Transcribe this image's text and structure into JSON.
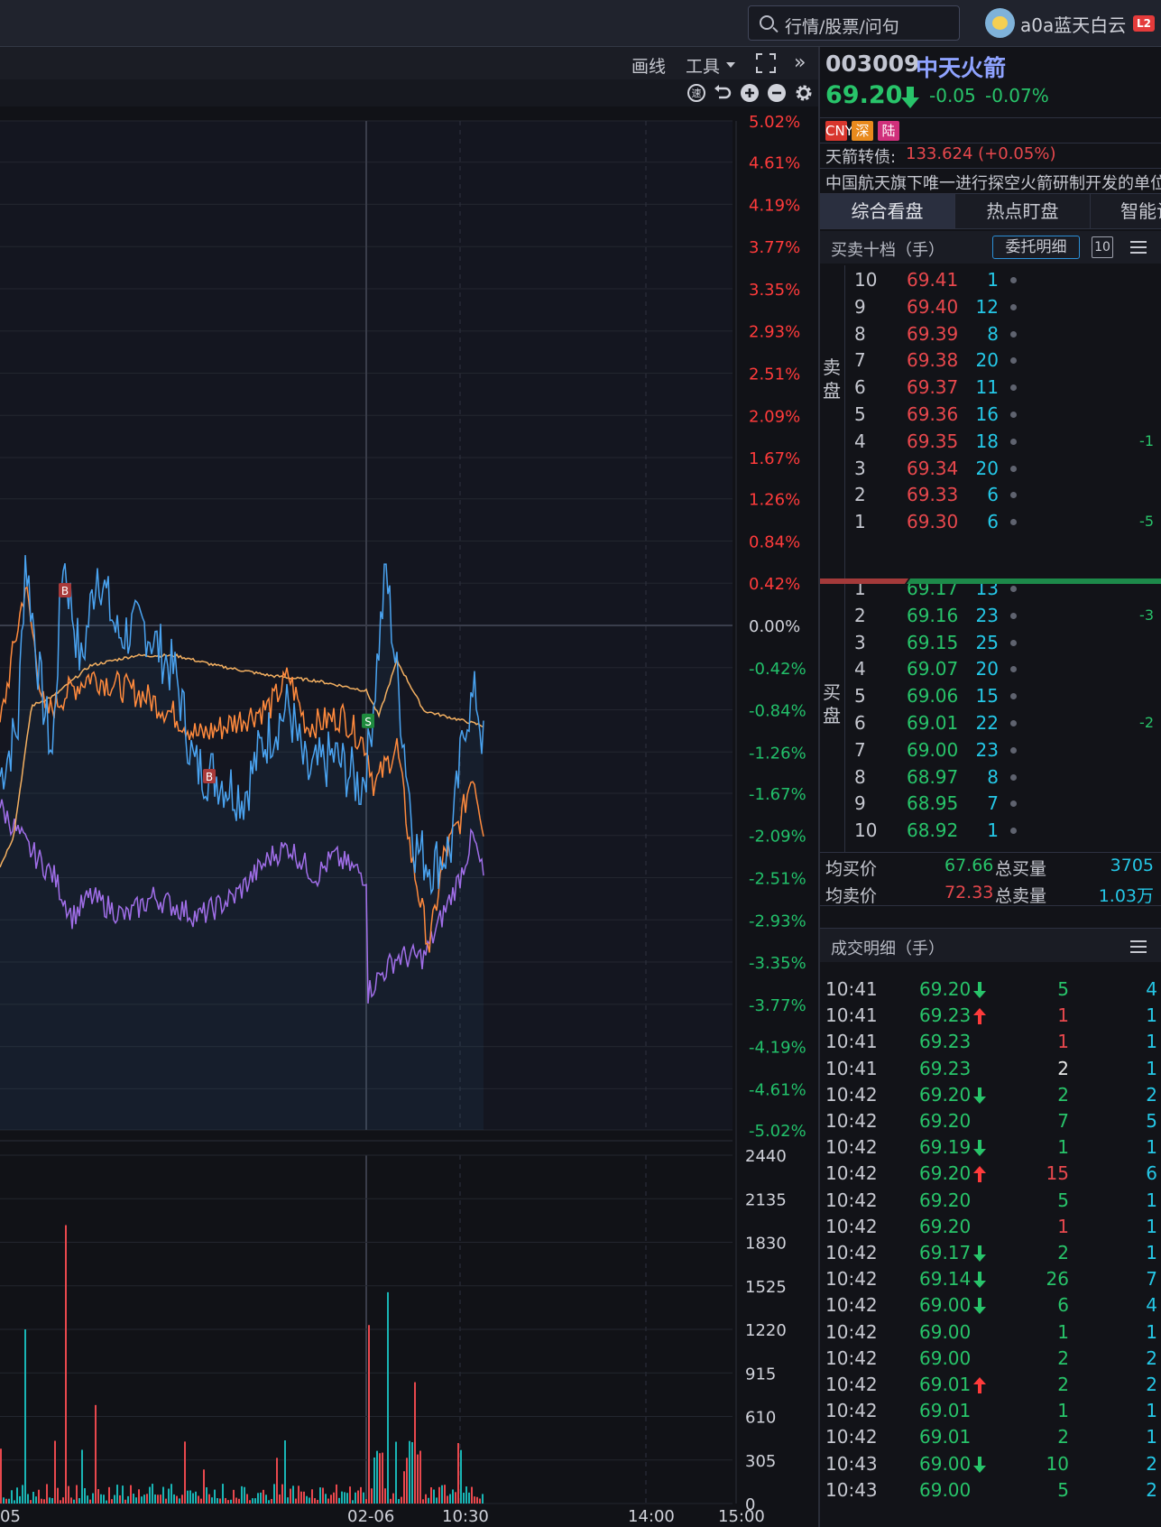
{
  "header": {
    "search_placeholder": "行情/股票/问句",
    "username": "a0a蓝天白云",
    "badge": "L2"
  },
  "chart_toolbar": {
    "draw_line": "画线",
    "tools": "工具",
    "icons": [
      "speed-icon",
      "undo-icon",
      "zoom-in-icon",
      "zoom-out-icon",
      "gear-icon"
    ]
  },
  "chart_data": {
    "type": "line",
    "price_axis_labels": [
      "5.02%",
      "4.61%",
      "4.19%",
      "3.77%",
      "3.35%",
      "2.93%",
      "2.51%",
      "2.09%",
      "1.67%",
      "1.26%",
      "0.84%",
      "0.42%",
      "0.00%",
      "-0.42%",
      "-0.84%",
      "-1.26%",
      "-1.67%",
      "-2.09%",
      "-2.51%",
      "-2.93%",
      "-3.35%",
      "-3.77%",
      "-4.19%",
      "-4.61%",
      "-5.02%"
    ],
    "ylim": [
      -5.02,
      5.02
    ],
    "volume_axis_labels": [
      "2440",
      "2135",
      "1830",
      "1525",
      "1220",
      "915",
      "610",
      "305",
      "0"
    ],
    "volume_ylim": [
      0,
      2440
    ],
    "time_labels": [
      "05",
      "02-06",
      "10:30",
      "14:00",
      "15:00"
    ],
    "markers": [
      {
        "label": "B",
        "x": 0.085,
        "y": 0.35
      },
      {
        "label": "B",
        "x": 0.28,
        "y": -1.5
      },
      {
        "label": "S",
        "x": 0.5,
        "y": -0.95
      }
    ],
    "colors": {
      "price": "#4aa3f0",
      "avg": "#ff8a3d",
      "long_avg": "#f4b061",
      "purple": "#a06ee8",
      "up": "#e8484d",
      "down": "#19b5b5"
    }
  },
  "stock": {
    "code": "003009",
    "name": "中天火箭",
    "price": "69.20",
    "change": "-0.05",
    "change_pct": "-0.07%",
    "tags": [
      "CNY",
      "深",
      "陆"
    ],
    "bond_label": "天箭转债:",
    "bond_value": "133.624 (+0.05%)",
    "description": "中国航天旗下唯一进行探空火箭研制开发的单位"
  },
  "tabs": [
    "综合看盘",
    "热点盯盘",
    "智能诊"
  ],
  "orderbook": {
    "title": "买卖十档（手）",
    "delegate_button": "委托明细",
    "level_badge": "10",
    "sell_label": "卖盘",
    "buy_label": "买盘",
    "asks": [
      {
        "level": "10",
        "price": "69.41",
        "vol": "1",
        "chg": ""
      },
      {
        "level": "9",
        "price": "69.40",
        "vol": "12",
        "chg": ""
      },
      {
        "level": "8",
        "price": "69.39",
        "vol": "8",
        "chg": ""
      },
      {
        "level": "7",
        "price": "69.38",
        "vol": "20",
        "chg": ""
      },
      {
        "level": "6",
        "price": "69.37",
        "vol": "11",
        "chg": ""
      },
      {
        "level": "5",
        "price": "69.36",
        "vol": "16",
        "chg": ""
      },
      {
        "level": "4",
        "price": "69.35",
        "vol": "18",
        "chg": "-1"
      },
      {
        "level": "3",
        "price": "69.34",
        "vol": "20",
        "chg": ""
      },
      {
        "level": "2",
        "price": "69.33",
        "vol": "6",
        "chg": ""
      },
      {
        "level": "1",
        "price": "69.30",
        "vol": "6",
        "chg": "-5"
      }
    ],
    "bids": [
      {
        "level": "1",
        "price": "69.17",
        "vol": "13",
        "chg": ""
      },
      {
        "level": "2",
        "price": "69.16",
        "vol": "23",
        "chg": "-3"
      },
      {
        "level": "3",
        "price": "69.15",
        "vol": "25",
        "chg": ""
      },
      {
        "level": "4",
        "price": "69.07",
        "vol": "20",
        "chg": ""
      },
      {
        "level": "5",
        "price": "69.06",
        "vol": "15",
        "chg": ""
      },
      {
        "level": "6",
        "price": "69.01",
        "vol": "22",
        "chg": "-2"
      },
      {
        "level": "7",
        "price": "69.00",
        "vol": "23",
        "chg": ""
      },
      {
        "level": "8",
        "price": "68.97",
        "vol": "8",
        "chg": ""
      },
      {
        "level": "9",
        "price": "68.95",
        "vol": "7",
        "chg": ""
      },
      {
        "level": "10",
        "price": "68.92",
        "vol": "1",
        "chg": ""
      }
    ],
    "avg_buy_label": "均买价",
    "avg_buy": "67.66",
    "total_buy_label": "总买量",
    "total_buy": "3705",
    "avg_sell_label": "均卖价",
    "avg_sell": "72.33",
    "total_sell_label": "总卖量",
    "total_sell": "1.03万"
  },
  "trades": {
    "title": "成交明细（手）",
    "rows": [
      {
        "time": "10:41",
        "price": "69.20",
        "dir": "down",
        "vol": "5",
        "vcolor": "#28c46a",
        "cnt": "4"
      },
      {
        "time": "10:41",
        "price": "69.23",
        "dir": "up",
        "vol": "1",
        "vcolor": "#e8484d",
        "cnt": "1"
      },
      {
        "time": "10:41",
        "price": "69.23",
        "dir": "",
        "vol": "1",
        "vcolor": "#e8484d",
        "cnt": "1"
      },
      {
        "time": "10:41",
        "price": "69.23",
        "dir": "",
        "vol": "2",
        "vcolor": "#e6e6e6",
        "cnt": "1"
      },
      {
        "time": "10:42",
        "price": "69.20",
        "dir": "down",
        "vol": "2",
        "vcolor": "#28c46a",
        "cnt": "2"
      },
      {
        "time": "10:42",
        "price": "69.20",
        "dir": "",
        "vol": "7",
        "vcolor": "#28c46a",
        "cnt": "5"
      },
      {
        "time": "10:42",
        "price": "69.19",
        "dir": "down",
        "vol": "1",
        "vcolor": "#28c46a",
        "cnt": "1"
      },
      {
        "time": "10:42",
        "price": "69.20",
        "dir": "up",
        "vol": "15",
        "vcolor": "#e8484d",
        "cnt": "6"
      },
      {
        "time": "10:42",
        "price": "69.20",
        "dir": "",
        "vol": "5",
        "vcolor": "#28c46a",
        "cnt": "1"
      },
      {
        "time": "10:42",
        "price": "69.20",
        "dir": "",
        "vol": "1",
        "vcolor": "#e8484d",
        "cnt": "1"
      },
      {
        "time": "10:42",
        "price": "69.17",
        "dir": "down",
        "vol": "2",
        "vcolor": "#28c46a",
        "cnt": "1"
      },
      {
        "time": "10:42",
        "price": "69.14",
        "dir": "down",
        "vol": "26",
        "vcolor": "#28c46a",
        "cnt": "7"
      },
      {
        "time": "10:42",
        "price": "69.00",
        "dir": "down",
        "vol": "6",
        "vcolor": "#28c46a",
        "cnt": "4"
      },
      {
        "time": "10:42",
        "price": "69.00",
        "dir": "",
        "vol": "1",
        "vcolor": "#28c46a",
        "cnt": "1"
      },
      {
        "time": "10:42",
        "price": "69.00",
        "dir": "",
        "vol": "2",
        "vcolor": "#28c46a",
        "cnt": "2"
      },
      {
        "time": "10:42",
        "price": "69.01",
        "dir": "up",
        "vol": "2",
        "vcolor": "#28c46a",
        "cnt": "2"
      },
      {
        "time": "10:42",
        "price": "69.01",
        "dir": "",
        "vol": "1",
        "vcolor": "#28c46a",
        "cnt": "1"
      },
      {
        "time": "10:42",
        "price": "69.01",
        "dir": "",
        "vol": "2",
        "vcolor": "#28c46a",
        "cnt": "1"
      },
      {
        "time": "10:43",
        "price": "69.00",
        "dir": "down",
        "vol": "10",
        "vcolor": "#28c46a",
        "cnt": "2"
      },
      {
        "time": "10:43",
        "price": "69.00",
        "dir": "",
        "vol": "5",
        "vcolor": "#28c46a",
        "cnt": "2"
      }
    ]
  }
}
